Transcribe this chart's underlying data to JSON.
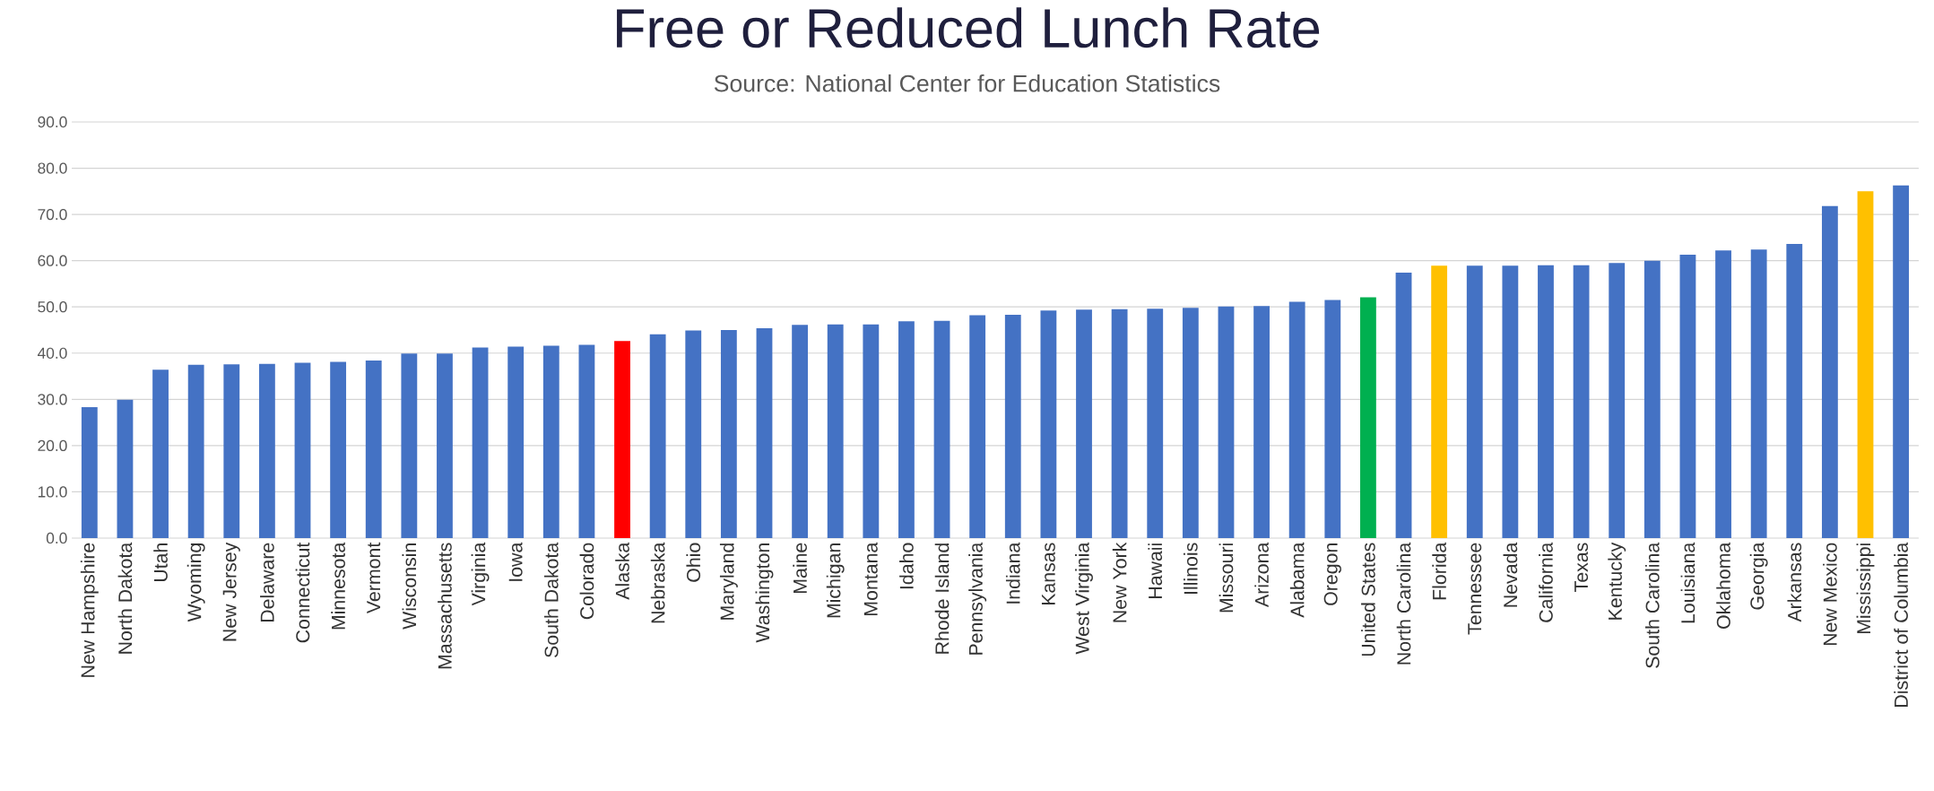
{
  "chart_data": {
    "type": "bar",
    "title": "Free or Reduced Lunch Rate",
    "annotations": [
      "Source: National Center for Education Statistics"
    ],
    "categories": [
      "New Hampshire",
      "North Dakota",
      "Utah",
      "Wyoming",
      "New Jersey",
      "Delaware",
      "Connecticut",
      "Minnesota",
      "Vermont",
      "Wisconsin",
      "Massachusetts",
      "Virginia",
      "Iowa",
      "South Dakota",
      "Colorado",
      "Alaska",
      "Nebraska",
      "Ohio",
      "Maryland",
      "Washington",
      "Maine",
      "Michigan",
      "Montana",
      "Idaho",
      "Rhode Island",
      "Pennsylvania",
      "Indiana",
      "Kansas",
      "West Virginia",
      "New York",
      "Hawaii",
      "Illinois",
      "Missouri",
      "Arizona",
      "Alabama",
      "Oregon",
      "United States",
      "North Carolina",
      "Florida",
      "Tennessee",
      "Nevada",
      "California",
      "Texas",
      "Kentucky",
      "South Carolina",
      "Louisiana",
      "Oklahoma",
      "Georgia",
      "Arkansas",
      "New Mexico",
      "Mississippi",
      "District of Columbia"
    ],
    "values": [
      28.3,
      29.9,
      36.4,
      37.5,
      37.6,
      37.7,
      37.9,
      38.1,
      38.4,
      39.9,
      39.9,
      41.2,
      41.4,
      41.6,
      41.8,
      42.6,
      44.1,
      44.9,
      45.0,
      45.4,
      46.1,
      46.2,
      46.2,
      46.9,
      47.0,
      48.2,
      48.3,
      49.2,
      49.4,
      49.5,
      49.6,
      49.8,
      50.1,
      50.2,
      51.1,
      51.5,
      52.1,
      57.4,
      58.9,
      58.9,
      58.9,
      59.0,
      59.0,
      59.5,
      60.0,
      61.3,
      62.2,
      62.4,
      63.6,
      71.8,
      75.0,
      76.3
    ],
    "colors": [
      "#4472c4",
      "#4472c4",
      "#4472c4",
      "#4472c4",
      "#4472c4",
      "#4472c4",
      "#4472c4",
      "#4472c4",
      "#4472c4",
      "#4472c4",
      "#4472c4",
      "#4472c4",
      "#4472c4",
      "#4472c4",
      "#4472c4",
      "#ff0000",
      "#4472c4",
      "#4472c4",
      "#4472c4",
      "#4472c4",
      "#4472c4",
      "#4472c4",
      "#4472c4",
      "#4472c4",
      "#4472c4",
      "#4472c4",
      "#4472c4",
      "#4472c4",
      "#4472c4",
      "#4472c4",
      "#4472c4",
      "#4472c4",
      "#4472c4",
      "#4472c4",
      "#4472c4",
      "#4472c4",
      "#00b050",
      "#4472c4",
      "#ffc000",
      "#4472c4",
      "#4472c4",
      "#4472c4",
      "#4472c4",
      "#4472c4",
      "#4472c4",
      "#4472c4",
      "#4472c4",
      "#4472c4",
      "#4472c4",
      "#4472c4",
      "#ffc000",
      "#4472c4"
    ],
    "ylim": [
      0,
      90
    ],
    "yticks": [
      {
        "value": 0,
        "label": "0.0"
      },
      {
        "value": 10,
        "label": "10.0"
      },
      {
        "value": 20,
        "label": "20.0"
      },
      {
        "value": 30,
        "label": "30.0"
      },
      {
        "value": 40,
        "label": "40.0"
      },
      {
        "value": 50,
        "label": "50.0"
      },
      {
        "value": 60,
        "label": "60.0"
      },
      {
        "value": 70,
        "label": "70.0"
      },
      {
        "value": 80,
        "label": "80.0"
      },
      {
        "value": 90,
        "label": "90.0"
      }
    ],
    "grid": "y"
  }
}
